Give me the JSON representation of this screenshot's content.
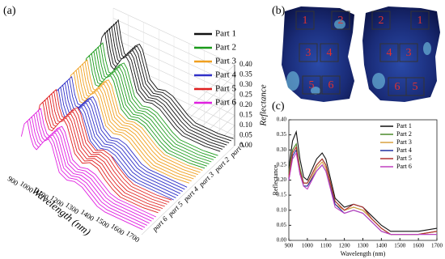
{
  "chart_data": [
    {
      "type": "waterfall",
      "label": "(a)",
      "zlabel": "Reflectance",
      "xlabel": "Wavelength (nm)",
      "x": [
        900,
        920,
        940,
        960,
        980,
        1000,
        1050,
        1080,
        1100,
        1150,
        1200,
        1250,
        1300,
        1350,
        1400,
        1450,
        1500,
        1600,
        1700
      ],
      "xlim": [
        900,
        1700
      ],
      "xticks": [
        900,
        1000,
        1100,
        1200,
        1300,
        1400,
        1500,
        1600,
        1700
      ],
      "ylim": [
        0,
        0.4
      ],
      "yticks": [
        {
          "value": 0,
          "label": "0.00"
        },
        {
          "value": 0.05,
          "label": "0.05"
        },
        {
          "value": 0.1,
          "label": "0.10"
        },
        {
          "value": 0.15,
          "label": "0.15"
        },
        {
          "value": 0.2,
          "label": "0.20"
        },
        {
          "value": 0.25,
          "label": "0.25"
        },
        {
          "value": 0.3,
          "label": "0.30"
        },
        {
          "value": 0.35,
          "label": "0.35"
        },
        {
          "value": 0.4,
          "label": "0.40"
        }
      ],
      "depth_labels": [
        "part 1",
        "part 2",
        "part 3",
        "part 4",
        "part 5",
        "part 6"
      ],
      "series": [
        {
          "name": "Part 1",
          "color": "#111111",
          "values": [
            0.24,
            0.33,
            0.36,
            0.27,
            0.21,
            0.2,
            0.27,
            0.29,
            0.27,
            0.14,
            0.11,
            0.12,
            0.11,
            0.08,
            0.05,
            0.03,
            0.03,
            0.03,
            0.04
          ]
        },
        {
          "name": "Part 2",
          "color": "#1a9a1a",
          "values": [
            0.22,
            0.3,
            0.32,
            0.24,
            0.19,
            0.19,
            0.25,
            0.27,
            0.25,
            0.13,
            0.1,
            0.11,
            0.1,
            0.07,
            0.04,
            0.02,
            0.02,
            0.02,
            0.03
          ]
        },
        {
          "name": "Part 3",
          "color": "#f0a020",
          "values": [
            0.21,
            0.29,
            0.31,
            0.23,
            0.18,
            0.18,
            0.24,
            0.26,
            0.24,
            0.12,
            0.1,
            0.11,
            0.1,
            0.07,
            0.04,
            0.02,
            0.02,
            0.02,
            0.03
          ]
        },
        {
          "name": "Part 4",
          "color": "#3030c8",
          "values": [
            0.2,
            0.28,
            0.3,
            0.22,
            0.18,
            0.18,
            0.23,
            0.25,
            0.23,
            0.12,
            0.09,
            0.1,
            0.09,
            0.06,
            0.03,
            0.02,
            0.02,
            0.02,
            0.02
          ]
        },
        {
          "name": "Part 5",
          "color": "#e02020",
          "values": [
            0.21,
            0.29,
            0.31,
            0.23,
            0.19,
            0.19,
            0.25,
            0.27,
            0.25,
            0.13,
            0.1,
            0.12,
            0.11,
            0.07,
            0.04,
            0.02,
            0.02,
            0.02,
            0.03
          ]
        },
        {
          "name": "Part 6",
          "color": "#e020e0",
          "values": [
            0.2,
            0.27,
            0.29,
            0.22,
            0.18,
            0.17,
            0.23,
            0.25,
            0.23,
            0.11,
            0.09,
            0.1,
            0.09,
            0.06,
            0.03,
            0.02,
            0.02,
            0.02,
            0.02
          ]
        }
      ]
    },
    {
      "type": "line",
      "label": "(c)",
      "ylabel": "Reflectance",
      "xlabel": "Wavelength (nm)",
      "x": [
        900,
        920,
        940,
        960,
        980,
        1000,
        1050,
        1080,
        1100,
        1150,
        1200,
        1250,
        1300,
        1350,
        1400,
        1450,
        1500,
        1600,
        1700
      ],
      "xlim": [
        900,
        1700
      ],
      "xticks": [
        900,
        1000,
        1100,
        1200,
        1300,
        1400,
        1500,
        1600,
        1700
      ],
      "ylim": [
        0,
        0.4
      ],
      "yticks": [
        {
          "value": 0,
          "label": "0.00"
        },
        {
          "value": 0.05,
          "label": "0.05"
        },
        {
          "value": 0.1,
          "label": "0.10"
        },
        {
          "value": 0.15,
          "label": "0.15"
        },
        {
          "value": 0.2,
          "label": "0.20"
        },
        {
          "value": 0.25,
          "label": "0.25"
        },
        {
          "value": 0.3,
          "label": "0.30"
        },
        {
          "value": 0.35,
          "label": "0.35"
        },
        {
          "value": 0.4,
          "label": "0.40"
        }
      ],
      "legend": "upper right",
      "series": [
        {
          "name": "Part 1",
          "color": "#111111",
          "values": [
            0.24,
            0.33,
            0.36,
            0.27,
            0.21,
            0.2,
            0.27,
            0.29,
            0.27,
            0.14,
            0.11,
            0.12,
            0.11,
            0.08,
            0.05,
            0.03,
            0.03,
            0.03,
            0.04
          ]
        },
        {
          "name": "Part 2",
          "color": "#4a8a2a",
          "values": [
            0.22,
            0.3,
            0.32,
            0.24,
            0.19,
            0.19,
            0.25,
            0.27,
            0.25,
            0.13,
            0.1,
            0.11,
            0.1,
            0.07,
            0.04,
            0.02,
            0.02,
            0.02,
            0.03
          ]
        },
        {
          "name": "Part 3",
          "color": "#d8a040",
          "values": [
            0.21,
            0.29,
            0.31,
            0.23,
            0.18,
            0.18,
            0.24,
            0.26,
            0.24,
            0.12,
            0.1,
            0.11,
            0.1,
            0.07,
            0.04,
            0.02,
            0.02,
            0.02,
            0.03
          ]
        },
        {
          "name": "Part 4",
          "color": "#2030a0",
          "values": [
            0.2,
            0.28,
            0.3,
            0.22,
            0.18,
            0.18,
            0.23,
            0.25,
            0.23,
            0.12,
            0.09,
            0.1,
            0.09,
            0.06,
            0.03,
            0.02,
            0.02,
            0.02,
            0.02
          ]
        },
        {
          "name": "Part 5",
          "color": "#b03030",
          "values": [
            0.21,
            0.29,
            0.31,
            0.23,
            0.19,
            0.19,
            0.25,
            0.27,
            0.25,
            0.13,
            0.1,
            0.12,
            0.11,
            0.07,
            0.04,
            0.02,
            0.02,
            0.02,
            0.03
          ]
        },
        {
          "name": "Part 6",
          "color": "#c040c0",
          "values": [
            0.2,
            0.27,
            0.29,
            0.22,
            0.18,
            0.17,
            0.23,
            0.25,
            0.23,
            0.11,
            0.09,
            0.1,
            0.09,
            0.06,
            0.03,
            0.02,
            0.02,
            0.02,
            0.02
          ]
        }
      ]
    }
  ],
  "image": {
    "label": "(b)",
    "left_regions": [
      "1",
      "2",
      "3",
      "4",
      "5",
      "6"
    ],
    "right_regions": [
      "2",
      "1",
      "4",
      "3",
      "6",
      "5"
    ]
  }
}
